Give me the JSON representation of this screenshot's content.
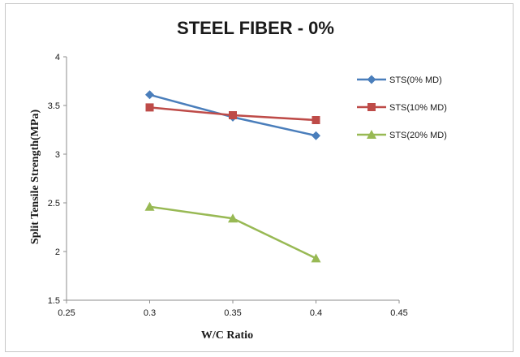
{
  "chart_data": {
    "type": "line",
    "title": "STEEL FIBER - 0%",
    "xlabel": "W/C Ratio",
    "ylabel": "Split Tensile Strength(MPa)",
    "xlim": [
      0.25,
      0.45
    ],
    "ylim": [
      1.5,
      4
    ],
    "xticks": [
      "0.25",
      "0.3",
      "0.35",
      "0.4",
      "0.45"
    ],
    "yticks": [
      "1.5",
      "2",
      "2.5",
      "3",
      "3.5",
      "4"
    ],
    "grid": false,
    "legend_position": "right",
    "x": [
      0.3,
      0.35,
      0.4
    ],
    "series": [
      {
        "name": "STS(0% MD)",
        "values": [
          3.61,
          3.38,
          3.19
        ],
        "color": "#4a7ebb",
        "marker": "diamond"
      },
      {
        "name": "STS(10% MD)",
        "values": [
          3.48,
          3.4,
          3.35
        ],
        "color": "#be4b48",
        "marker": "square"
      },
      {
        "name": "STS(20% MD)",
        "values": [
          2.46,
          2.34,
          1.93
        ],
        "color": "#98b954",
        "marker": "triangle"
      }
    ]
  }
}
